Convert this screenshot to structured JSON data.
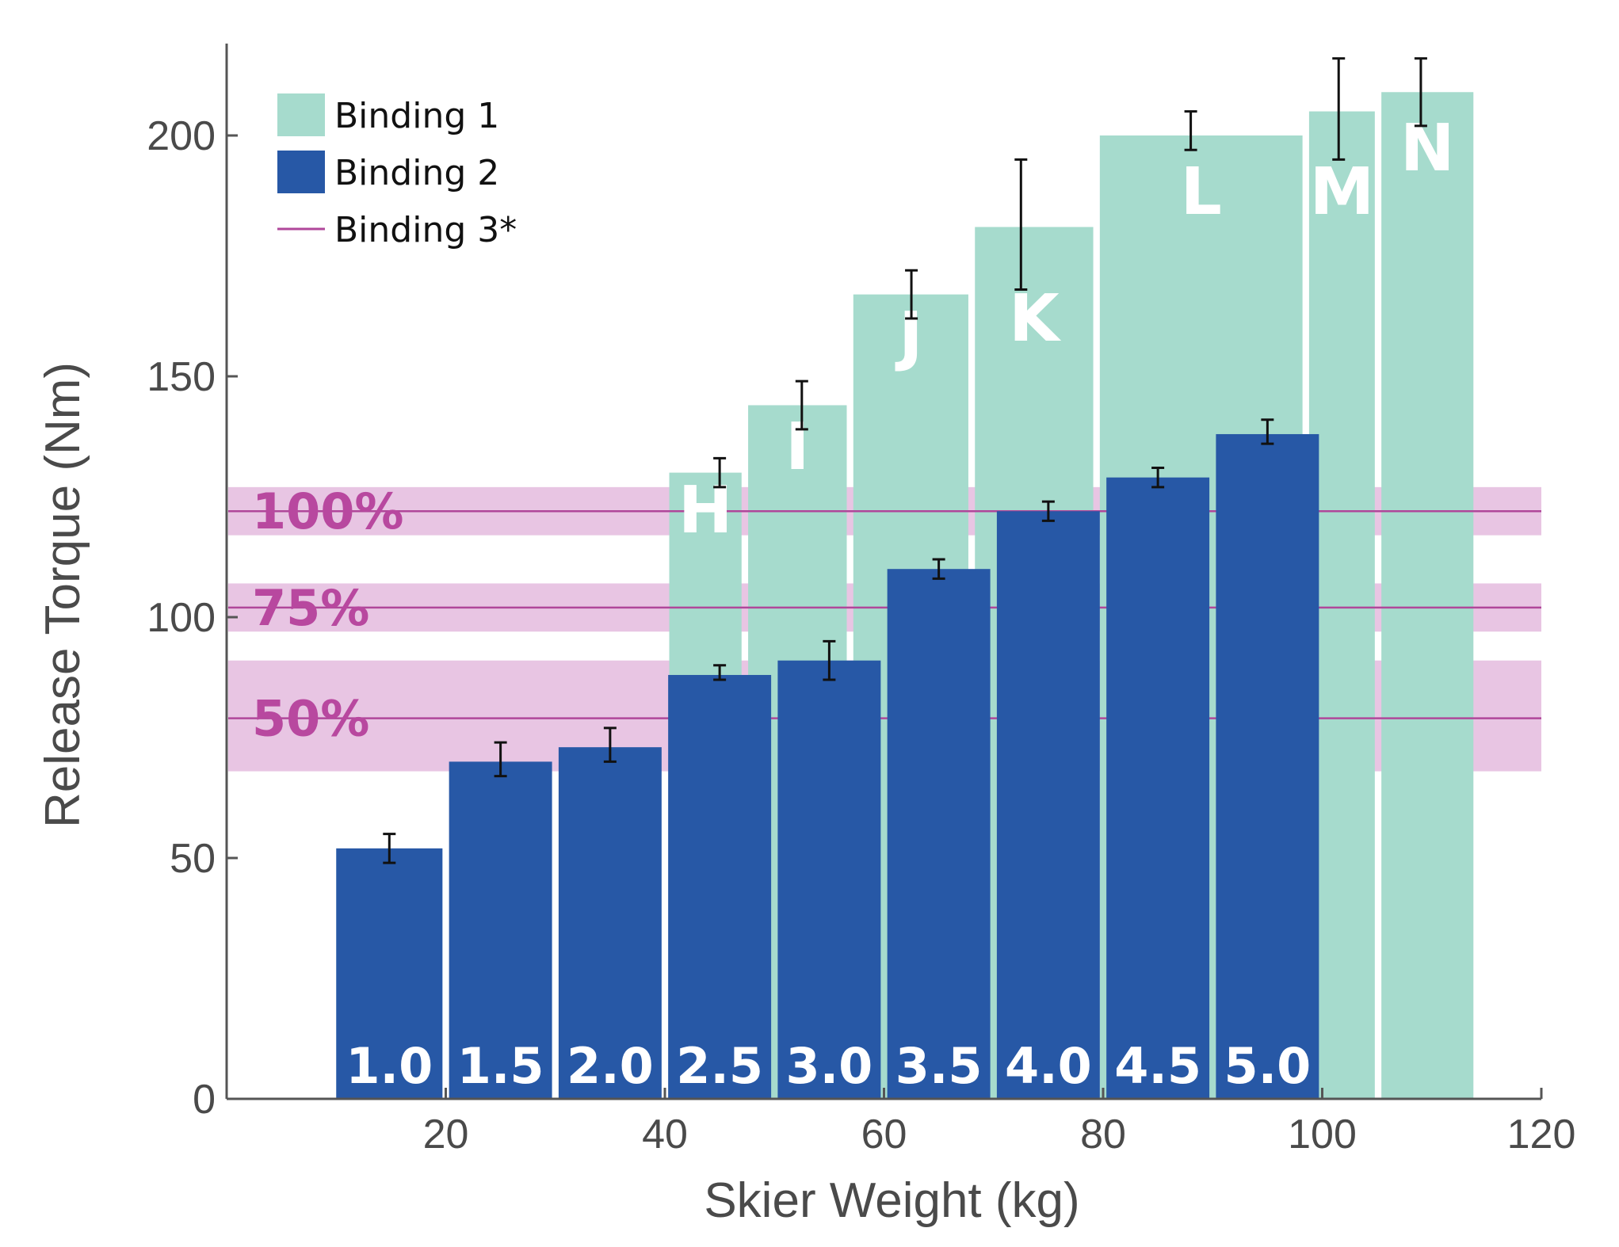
{
  "chart_data": {
    "type": "bar",
    "xlabel": "Skier Weight (kg)",
    "ylabel": "Release Torque (Nm)",
    "xlim": [
      0,
      120
    ],
    "ylim": [
      0,
      220
    ],
    "xticks": [
      20,
      40,
      60,
      80,
      100,
      120
    ],
    "yticks": [
      0,
      50,
      100,
      150,
      200
    ],
    "legend": [
      {
        "label": "Binding 1",
        "kind": "patch",
        "color": "#a6dbcd"
      },
      {
        "label": "Binding 2",
        "kind": "patch",
        "color": "#2758a6"
      },
      {
        "label": "Binding 3*",
        "kind": "line",
        "color": "#b0479a"
      }
    ],
    "series": [
      {
        "name": "Binding 1",
        "color": "#a6dbcd",
        "bars": [
          {
            "label": "H",
            "x0": 40.4,
            "x1": 47.0,
            "value": 130,
            "err": [
              127,
              133
            ]
          },
          {
            "label": "I",
            "x0": 47.6,
            "x1": 56.6,
            "value": 144,
            "err": [
              139,
              149
            ]
          },
          {
            "label": "J",
            "x0": 57.2,
            "x1": 67.7,
            "value": 167,
            "err": [
              162,
              172
            ]
          },
          {
            "label": "K",
            "x0": 68.3,
            "x1": 79.1,
            "value": 181,
            "err": [
              168,
              195
            ]
          },
          {
            "label": "L",
            "x0": 79.7,
            "x1": 98.2,
            "value": 200,
            "err": [
              197,
              205
            ]
          },
          {
            "label": "M",
            "x0": 98.8,
            "x1": 104.8,
            "value": 205,
            "err": [
              195,
              216
            ]
          },
          {
            "label": "N",
            "x0": 105.4,
            "x1": 113.8,
            "value": 209,
            "err": [
              202,
              216
            ]
          }
        ]
      },
      {
        "name": "Binding 2",
        "color": "#2758a6",
        "bars": [
          {
            "label": "1.0",
            "x0": 10.0,
            "x1": 19.7,
            "value": 52,
            "err": [
              49,
              55
            ]
          },
          {
            "label": "1.5",
            "x0": 20.3,
            "x1": 29.7,
            "value": 70,
            "err": [
              67,
              74
            ]
          },
          {
            "label": "2.0",
            "x0": 30.3,
            "x1": 39.7,
            "value": 73,
            "err": [
              70,
              77
            ]
          },
          {
            "label": "2.5",
            "x0": 40.3,
            "x1": 49.7,
            "value": 88,
            "err": [
              87,
              90
            ]
          },
          {
            "label": "3.0",
            "x0": 50.3,
            "x1": 59.7,
            "value": 91,
            "err": [
              87,
              95
            ]
          },
          {
            "label": "3.5",
            "x0": 60.3,
            "x1": 69.7,
            "value": 110,
            "err": [
              108,
              112
            ]
          },
          {
            "label": "4.0",
            "x0": 70.3,
            "x1": 79.7,
            "value": 122,
            "err": [
              120,
              124
            ]
          },
          {
            "label": "4.5",
            "x0": 80.3,
            "x1": 89.7,
            "value": 129,
            "err": [
              127,
              131
            ]
          },
          {
            "label": "5.0",
            "x0": 90.3,
            "x1": 99.7,
            "value": 138,
            "err": [
              136,
              141
            ]
          }
        ]
      }
    ],
    "reference_bands": [
      {
        "label": "100%",
        "value": 122,
        "range": [
          117,
          127
        ]
      },
      {
        "label": "75%",
        "value": 102,
        "range": [
          97,
          107
        ]
      },
      {
        "label": "50%",
        "value": 79,
        "range": [
          68,
          91
        ]
      }
    ],
    "band_color": "#e8c5e3",
    "band_line_color": "#b0479a",
    "band_label_color": "#b8489f"
  }
}
